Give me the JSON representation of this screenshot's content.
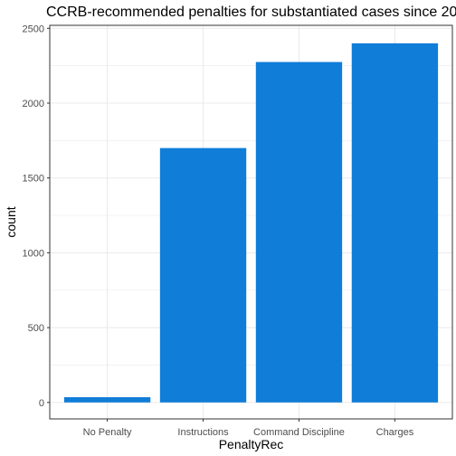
{
  "chart_data": {
    "type": "bar",
    "title": "CCRB-recommended penalties for substantiated cases since 20",
    "xlabel": "PenaltyRec",
    "ylabel": "count",
    "categories": [
      "No Penalty",
      "Instructions",
      "Command Discipline",
      "Charges"
    ],
    "values": [
      35,
      1700,
      2275,
      2400
    ],
    "ylim": [
      -110,
      2520
    ],
    "yticks": [
      0,
      500,
      1000,
      1500,
      2000,
      2500
    ],
    "ytick_labels": [
      "0",
      "500",
      "1000",
      "1500",
      "2000",
      "2500"
    ],
    "grid": true,
    "legend": "none",
    "bar_color": "#107dd8",
    "gridline_color": "#ebebeb",
    "panel_border_color": "#333333"
  }
}
